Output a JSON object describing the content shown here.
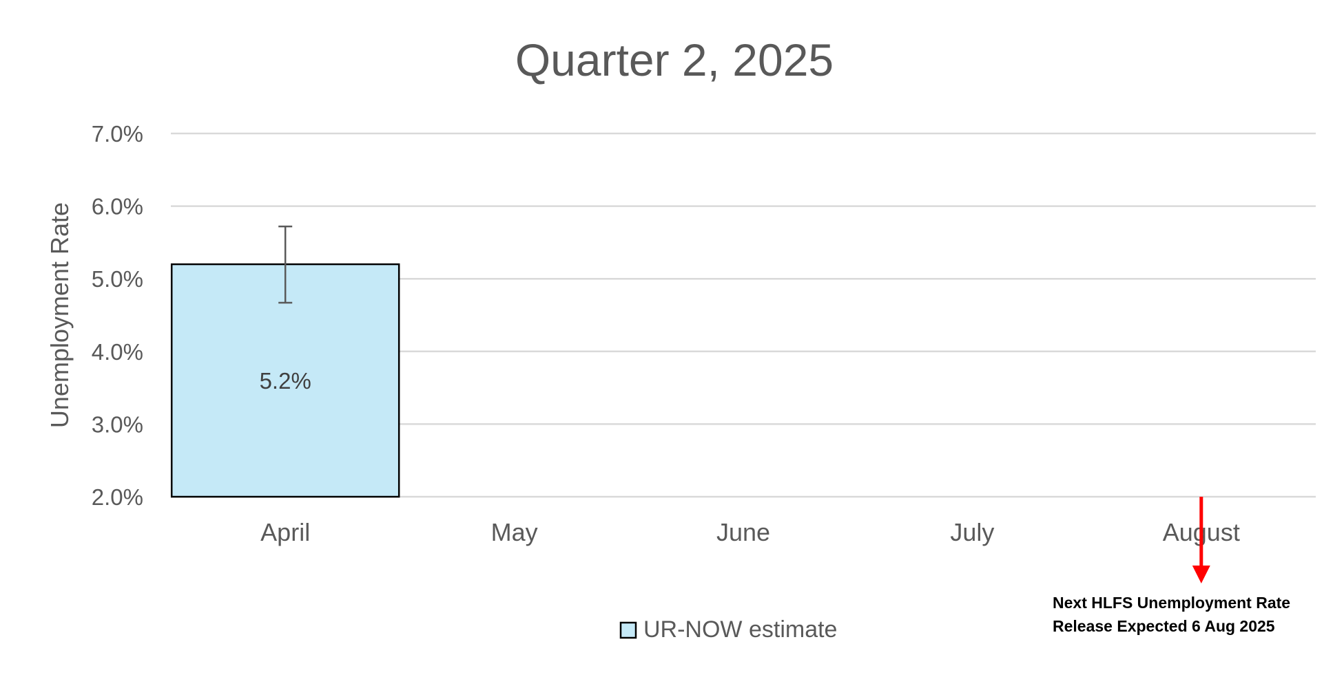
{
  "chart_data": {
    "type": "bar",
    "title": "Quarter 2, 2025",
    "xlabel": "",
    "ylabel": "Unemployment Rate",
    "categories": [
      "April",
      "May",
      "June",
      "July",
      "August"
    ],
    "series": [
      {
        "name": "UR-NOW estimate",
        "values": [
          5.2,
          null,
          null,
          null,
          null
        ],
        "error_low": [
          4.67,
          null,
          null,
          null,
          null
        ],
        "error_high": [
          5.72,
          null,
          null,
          null,
          null
        ],
        "data_labels": [
          "5.2%",
          "",
          "",
          "",
          ""
        ]
      }
    ],
    "ylim": [
      2.0,
      7.0
    ],
    "yticks": [
      2.0,
      3.0,
      4.0,
      5.0,
      6.0,
      7.0
    ],
    "ytick_labels": [
      "2.0%",
      "3.0%",
      "4.0%",
      "5.0%",
      "6.0%",
      "7.0%"
    ],
    "grid": true,
    "legend_position": "bottom-center",
    "annotation": {
      "category": "August",
      "lines": [
        "Next HLFS Unemployment Rate",
        "Release Expected 6 Aug 2025"
      ]
    },
    "colors": {
      "bar_fill": "#c5e9f7",
      "bar_stroke": "#000000",
      "grid": "#d9d9d9",
      "text": "#595959",
      "title": "#595959",
      "error_bar": "#595959",
      "arrow": "#ff0000",
      "annotation_text": "#000000"
    }
  }
}
